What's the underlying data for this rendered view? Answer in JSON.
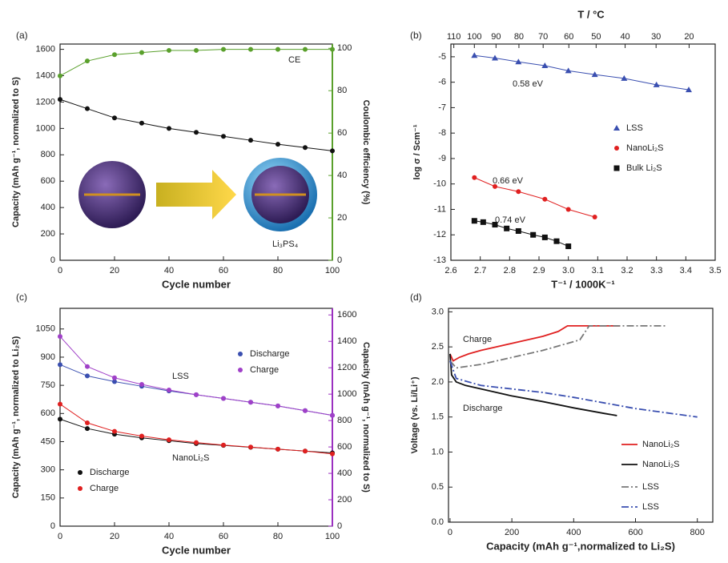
{
  "chart_data": [
    {
      "type": "line",
      "label": "(a)",
      "xlabel": "Cycle number",
      "ylabel": "Capacity (mAh g⁻¹, normalized to S)",
      "y2label": "Coulombic efficiency (%)",
      "xlim": [
        0,
        100
      ],
      "xticks": [
        0,
        20,
        40,
        60,
        80,
        100
      ],
      "ylim": [
        0,
        1640
      ],
      "yticks": [
        0,
        200,
        400,
        600,
        800,
        1000,
        1200,
        1400,
        1600
      ],
      "y2lim": [
        0,
        102
      ],
      "y2ticks": [
        0,
        20,
        40,
        60,
        80,
        100
      ],
      "y2color": "#5aa02c",
      "x": [
        0,
        10,
        20,
        30,
        40,
        50,
        60,
        70,
        80,
        90,
        100
      ],
      "series": [
        {
          "color": "#111111",
          "marker": "circle",
          "values": [
            1220,
            1150,
            1080,
            1040,
            1000,
            970,
            940,
            910,
            880,
            855,
            830
          ]
        },
        {
          "color": "#5aa02c",
          "marker": "circle",
          "axis": "y2",
          "values": [
            87,
            94,
            97,
            98,
            99,
            99,
            99.5,
            99.5,
            99.5,
            99.5,
            99.5
          ]
        }
      ],
      "annotations": [
        {
          "text": "CE",
          "color": "#5aa02c"
        },
        {
          "text": "Li₃PS₄",
          "color": "#222222"
        }
      ]
    },
    {
      "type": "scatter",
      "label": "(b)",
      "xlabel": "T⁻¹ / 1000K⁻¹",
      "ylabel": "log σ / Scm⁻¹",
      "x2label": "T / °C",
      "xlim": [
        2.6,
        3.5
      ],
      "xticks": [
        2.6,
        2.7,
        2.8,
        2.9,
        {
          "value": 3,
          "label": "3.0"
        },
        3.1,
        3.2,
        3.3,
        3.4,
        3.5
      ],
      "x2ticks": [
        110,
        100,
        90,
        80,
        70,
        60,
        50,
        40,
        30,
        20
      ],
      "ylim": [
        -13,
        -4.5
      ],
      "yticks": [
        -13,
        -12,
        -11,
        -10,
        -9,
        -8,
        -7,
        -6,
        -5
      ],
      "series": [
        {
          "name": "LSS",
          "color": "#3a4fb0",
          "marker": "triangle",
          "x": [
            2.68,
            2.75,
            2.83,
            2.92,
            3.0,
            3.09,
            3.19,
            3.3,
            3.41
          ],
          "values": [
            -4.95,
            -5.05,
            -5.2,
            -5.35,
            -5.55,
            -5.7,
            -5.85,
            -6.1,
            -6.3
          ]
        },
        {
          "name": "NanoLi₂S",
          "color": "#e02020",
          "marker": "circle",
          "x": [
            2.68,
            2.75,
            2.83,
            2.92,
            3.0,
            3.09
          ],
          "values": [
            -9.75,
            -10.1,
            -10.3,
            -10.6,
            -11.0,
            -11.3
          ]
        },
        {
          "name": "Bulk Li₂S",
          "color": "#111111",
          "marker": "square",
          "x": [
            2.68,
            2.71,
            2.75,
            2.79,
            2.83,
            2.88,
            2.92,
            2.96,
            3.0
          ],
          "values": [
            -11.45,
            -11.5,
            -11.6,
            -11.75,
            -11.85,
            -12.0,
            -12.1,
            -12.25,
            -12.45
          ]
        }
      ],
      "annotations": [
        {
          "text": "0.58 eV",
          "color": "#3a4fb0"
        },
        {
          "text": "0.66 eV",
          "color": "#e02020"
        },
        {
          "text": "0.74 eV",
          "color": "#111111"
        }
      ]
    },
    {
      "type": "line",
      "label": "(c)",
      "xlabel": "Cycle number",
      "ylabel": "Capacity (mAh g⁻¹, normalized to Li₂S)",
      "y2label": "Capacity (mAh g⁻¹, normalized to S)",
      "xlim": [
        0,
        100
      ],
      "xticks": [
        0,
        20,
        40,
        60,
        80,
        100
      ],
      "ylim": [
        0,
        1160
      ],
      "yticks": [
        0,
        150,
        300,
        450,
        600,
        750,
        900,
        1050
      ],
      "y2lim": [
        0,
        1650
      ],
      "y2ticks": [
        0,
        200,
        400,
        600,
        800,
        1000,
        1200,
        1400,
        1600
      ],
      "y2color": "#9b30c0",
      "x": [
        0,
        10,
        20,
        30,
        40,
        50,
        60,
        70,
        80,
        90,
        100
      ],
      "series": [
        {
          "name": "Discharge",
          "color": "#3a4fb0",
          "marker": "circle",
          "values": [
            860,
            800,
            770,
            745,
            720,
            700,
            680,
            660,
            640,
            615,
            590
          ]
        },
        {
          "name": "Charge",
          "color": "#a040c8",
          "marker": "circle",
          "values": [
            1010,
            850,
            790,
            755,
            725,
            700,
            680,
            660,
            640,
            615,
            590
          ]
        },
        {
          "name": "Discharge",
          "color": "#111111",
          "marker": "circle",
          "values": [
            570,
            520,
            490,
            470,
            455,
            440,
            430,
            420,
            410,
            400,
            390
          ]
        },
        {
          "name": "Charge",
          "color": "#e02020",
          "marker": "circle",
          "values": [
            650,
            550,
            505,
            480,
            460,
            445,
            432,
            421,
            410,
            400,
            385
          ]
        }
      ],
      "annotations": [
        {
          "text": "LSS",
          "color": "#a040c8"
        },
        {
          "text": "NanoLi₂S",
          "color": "#e02020"
        }
      ]
    },
    {
      "type": "line",
      "label": "(d)",
      "xlabel": "Capacity (mAh g⁻¹,normalized to Li₂S)",
      "ylabel": "Voltage (vs. Li/Li⁺)",
      "xlim": [
        -5,
        850
      ],
      "xticks": [
        0,
        200,
        400,
        600,
        800
      ],
      "ylim": [
        0,
        3.05
      ],
      "yticks": [
        {
          "value": 0,
          "label": "0.0"
        },
        0.5,
        {
          "value": 1,
          "label": "1.0"
        },
        1.5,
        {
          "value": 2,
          "label": "2.0"
        },
        2.5,
        {
          "value": 3,
          "label": "3.0"
        }
      ],
      "series": [
        {
          "name": "NanoLi₂S",
          "color": "#e02020",
          "dash": "solid",
          "x": [
            0,
            10,
            30,
            60,
            100,
            150,
            200,
            250,
            300,
            350,
            380,
            400,
            450,
            500,
            550
          ],
          "values": [
            2.4,
            2.3,
            2.35,
            2.4,
            2.45,
            2.5,
            2.55,
            2.6,
            2.65,
            2.72,
            2.8,
            2.8,
            2.8,
            2.8,
            2.8
          ]
        },
        {
          "name": "NanoLi₂S",
          "color": "#111111",
          "dash": "solid",
          "x": [
            0,
            5,
            20,
            50,
            100,
            200,
            300,
            400,
            500,
            540
          ],
          "values": [
            2.4,
            2.1,
            2.0,
            1.95,
            1.9,
            1.8,
            1.72,
            1.63,
            1.55,
            1.52
          ]
        },
        {
          "name": "LSS",
          "color": "#777777",
          "dash": "dash-dot",
          "x": [
            0,
            20,
            100,
            200,
            300,
            420,
            450,
            600,
            700
          ],
          "values": [
            2.3,
            2.2,
            2.25,
            2.35,
            2.45,
            2.6,
            2.8,
            2.8,
            2.8
          ]
        },
        {
          "name": "LSS",
          "color": "#3a4fb0",
          "dash": "dash-dot",
          "x": [
            0,
            20,
            100,
            200,
            300,
            400,
            500,
            600,
            700,
            800
          ],
          "values": [
            2.3,
            2.05,
            1.95,
            1.9,
            1.85,
            1.78,
            1.7,
            1.62,
            1.56,
            1.5
          ]
        }
      ],
      "annotations": [
        {
          "text": "Charge",
          "color": "#e02020"
        },
        {
          "text": "Discharge",
          "color": "#111111"
        }
      ]
    }
  ]
}
